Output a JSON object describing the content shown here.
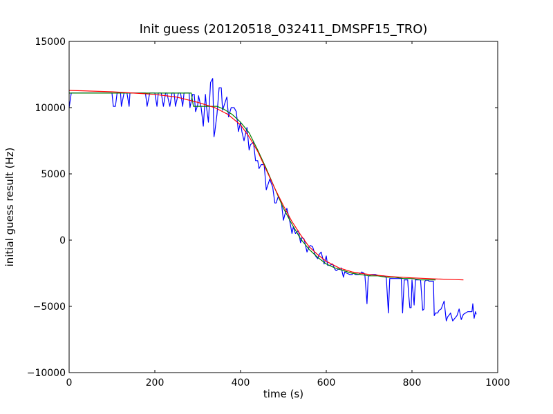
{
  "chart_data": {
    "type": "line",
    "title": "Init guess (20120518_032411_DMSPF15_TRO)",
    "xlabel": "time (s)",
    "ylabel": "initial guess result (Hz)",
    "xlim": [
      0,
      1000
    ],
    "ylim": [
      -10000,
      15000
    ],
    "xticks": [
      0,
      200,
      400,
      600,
      800,
      1000
    ],
    "yticks": [
      -10000,
      -5000,
      0,
      5000,
      10000,
      15000
    ],
    "xtick_labels": [
      "0",
      "200",
      "400",
      "600",
      "800",
      "1000"
    ],
    "ytick_labels": [
      "−10000",
      "−5000",
      "0",
      "5000",
      "10000",
      "15000"
    ],
    "grid": false,
    "legend": "none",
    "series": [
      {
        "color": "#0000ff",
        "x": [
          0,
          5,
          100,
          103,
          108,
          112,
          120,
          122,
          128,
          135,
          140,
          142,
          148,
          155,
          178,
          182,
          188,
          192,
          200,
          205,
          208,
          215,
          220,
          225,
          228,
          235,
          240,
          245,
          248,
          255,
          260,
          265,
          268,
          272,
          280,
          282,
          288,
          292,
          295,
          300,
          302,
          308,
          313,
          318,
          320,
          325,
          330,
          335,
          338,
          340,
          345,
          350,
          355,
          358,
          362,
          368,
          372,
          378,
          385,
          390,
          395,
          400,
          403,
          408,
          415,
          420,
          423,
          430,
          435,
          440,
          443,
          448,
          455,
          460,
          463,
          468,
          475,
          480,
          483,
          488,
          495,
          500,
          503,
          508,
          515,
          520,
          523,
          528,
          535,
          540,
          543,
          548,
          555,
          560,
          563,
          568,
          575,
          580,
          583,
          588,
          595,
          600,
          603,
          608,
          615,
          620,
          623,
          628,
          635,
          640,
          643,
          648,
          655,
          660,
          663,
          668,
          675,
          680,
          683,
          688,
          690,
          695,
          698,
          700,
          705,
          710,
          715,
          725,
          735,
          740,
          745,
          748,
          750,
          760,
          765,
          770,
          775,
          778,
          782,
          790,
          792,
          795,
          798,
          800,
          805,
          808,
          812,
          820,
          825,
          828,
          830,
          835,
          840,
          845,
          850,
          852,
          855,
          860,
          863,
          868,
          875,
          880,
          883,
          888,
          890,
          895,
          900,
          905,
          910,
          915,
          920,
          925,
          930,
          935,
          940,
          942,
          945,
          948,
          950
        ],
        "y": [
          10000,
          11100,
          11100,
          10100,
          10100,
          11100,
          11100,
          10100,
          11100,
          11100,
          10100,
          11100,
          11100,
          11100,
          11100,
          10100,
          11100,
          11100,
          11100,
          10100,
          11100,
          11100,
          10100,
          11100,
          11100,
          10100,
          11100,
          11100,
          10100,
          11100,
          11100,
          10100,
          11100,
          11100,
          11100,
          10000,
          11000,
          11000,
          9700,
          10200,
          10900,
          10000,
          8600,
          11000,
          10200,
          8900,
          11900,
          12200,
          7800,
          8200,
          9500,
          11500,
          11500,
          9800,
          10200,
          10800,
          9300,
          10000,
          10000,
          9700,
          8200,
          8900,
          8200,
          7500,
          8500,
          6800,
          7200,
          7400,
          6000,
          6000,
          5400,
          5700,
          5700,
          3800,
          4100,
          4600,
          4000,
          2800,
          2800,
          3300,
          2900,
          1500,
          1900,
          2400,
          1400,
          500,
          1000,
          500,
          700,
          -200,
          200,
          100,
          -900,
          -500,
          -400,
          -500,
          -1200,
          -1400,
          -1100,
          -900,
          -1800,
          -1200,
          -1900,
          -1900,
          -1800,
          -2200,
          -2300,
          -2200,
          -2100,
          -2800,
          -2400,
          -2500,
          -2600,
          -2600,
          -2500,
          -2600,
          -2600,
          -2500,
          -2400,
          -2500,
          -2600,
          -4800,
          -2700,
          -2700,
          -2600,
          -2600,
          -2600,
          -2700,
          -2700,
          -2800,
          -5500,
          -2900,
          -2900,
          -2900,
          -2900,
          -2900,
          -2900,
          -5500,
          -3000,
          -3000,
          -4000,
          -5100,
          -5100,
          -3000,
          -4900,
          -3000,
          -3000,
          -3000,
          -5300,
          -5200,
          -3100,
          -3000,
          -3100,
          -3100,
          -3100,
          -5700,
          -5500,
          -5500,
          -5300,
          -5200,
          -4600,
          -6100,
          -5800,
          -5600,
          -5500,
          -6100,
          -5900,
          -5700,
          -5200,
          -6000,
          -5600,
          -5500,
          -5400,
          -5400,
          -5400,
          -4800,
          -5900,
          -5400,
          -5600
        ]
      },
      {
        "color": "#008000",
        "x": [
          0,
          285,
          290,
          330,
          345,
          360,
          380,
          400,
          420,
          440,
          460,
          480,
          500,
          520,
          540,
          560,
          580,
          600,
          620,
          640,
          660,
          680,
          700,
          720,
          740,
          760,
          780,
          800,
          820,
          840,
          855
        ],
        "y": [
          11100,
          11100,
          10100,
          10100,
          10100,
          9900,
          9500,
          8900,
          8100,
          6800,
          5400,
          3900,
          2400,
          1200,
          100,
          -700,
          -1300,
          -1800,
          -2100,
          -2300,
          -2500,
          -2600,
          -2700,
          -2700,
          -2800,
          -2800,
          -2900,
          -2900,
          -3000,
          -3000,
          -3000
        ]
      },
      {
        "color": "#ff0000",
        "x": [
          0,
          50,
          100,
          150,
          200,
          250,
          300,
          340,
          370,
          400,
          420,
          440,
          460,
          480,
          500,
          520,
          540,
          560,
          580,
          600,
          630,
          660,
          700,
          750,
          800,
          850,
          900,
          920
        ],
        "y": [
          11300,
          11250,
          11200,
          11100,
          11000,
          10800,
          10400,
          10000,
          9500,
          8700,
          7800,
          6700,
          5300,
          3900,
          2600,
          1400,
          400,
          -500,
          -1100,
          -1600,
          -2100,
          -2400,
          -2600,
          -2750,
          -2850,
          -2920,
          -2980,
          -3000
        ]
      }
    ]
  }
}
